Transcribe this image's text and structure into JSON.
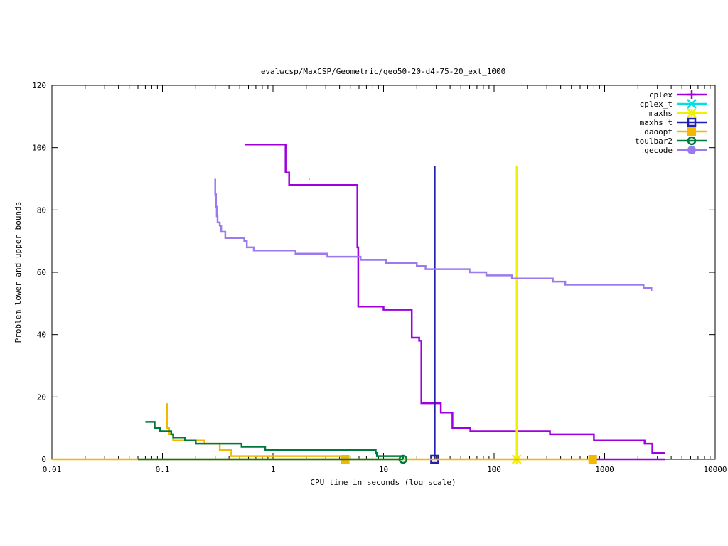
{
  "chart_data": {
    "type": "line",
    "title": "evalwcsp/MaxCSP/Geometric/geo50-20-d4-75-20_ext_1000",
    "xlabel": "CPU time in seconds (log scale)",
    "ylabel": "Problem lower and upper bounds",
    "xscale": "log",
    "xlim": [
      0.01,
      10000
    ],
    "ylim": [
      0,
      120
    ],
    "x_ticks": [
      0.01,
      0.1,
      1,
      10,
      100,
      1000,
      10000
    ],
    "x_tick_labels": [
      "0.01",
      "0.1",
      "1",
      "10",
      "100",
      "1000",
      "10000"
    ],
    "y_ticks": [
      0,
      20,
      40,
      60,
      80,
      100,
      120
    ],
    "y_tick_labels": [
      "0",
      "20",
      "40",
      "60",
      "80",
      "100",
      "120"
    ],
    "grid": false,
    "legend_position": "top-right",
    "series": [
      {
        "name": "cplex",
        "color": "#a000e0",
        "marker": "plus",
        "points": [
          [
            0.56,
            101
          ],
          [
            1.3,
            101
          ],
          [
            1.3,
            92
          ],
          [
            1.4,
            92
          ],
          [
            1.4,
            88
          ],
          [
            5.8,
            88
          ],
          [
            5.8,
            68
          ],
          [
            5.9,
            68
          ],
          [
            5.9,
            49
          ],
          [
            10,
            49
          ],
          [
            10,
            48
          ],
          [
            18,
            48
          ],
          [
            18,
            39
          ],
          [
            21,
            39
          ],
          [
            21,
            38
          ],
          [
            22,
            38
          ],
          [
            22,
            18
          ],
          [
            33,
            18
          ],
          [
            33,
            15
          ],
          [
            42,
            15
          ],
          [
            42,
            10
          ],
          [
            61,
            10
          ],
          [
            61,
            9
          ],
          [
            320,
            9
          ],
          [
            320,
            8
          ],
          [
            800,
            8
          ],
          [
            800,
            6
          ],
          [
            2300,
            6
          ],
          [
            2300,
            5
          ],
          [
            2700,
            5
          ],
          [
            2700,
            2
          ],
          [
            3500,
            2
          ]
        ],
        "extra_points": [
          [
            780,
            0
          ],
          [
            3500,
            0
          ]
        ],
        "marker_points": []
      },
      {
        "name": "cplex_t",
        "color": "#00e0e0",
        "marker": "cross",
        "points": [
          [
            2.1,
            90
          ],
          [
            2.15,
            90
          ]
        ],
        "marker_points": []
      },
      {
        "name": "maxhs",
        "color": "#f0f000",
        "marker": "star",
        "points": [
          [
            160,
            0
          ],
          [
            160,
            94
          ]
        ],
        "marker_points": [
          [
            160,
            0
          ]
        ]
      },
      {
        "name": "maxhs_t",
        "color": "#2020b0",
        "marker": "open-square",
        "points": [
          [
            29,
            0
          ],
          [
            29,
            94
          ]
        ],
        "marker_points": [
          [
            29,
            0
          ]
        ]
      },
      {
        "name": "daoopt",
        "color": "#f5b800",
        "marker": "filled-square",
        "points": [
          [
            0.11,
            18
          ],
          [
            0.11,
            10
          ],
          [
            0.115,
            10
          ],
          [
            0.115,
            8
          ],
          [
            0.125,
            8
          ],
          [
            0.125,
            6
          ],
          [
            0.24,
            6
          ],
          [
            0.24,
            5
          ],
          [
            0.33,
            5
          ],
          [
            0.33,
            3
          ],
          [
            0.42,
            3
          ],
          [
            0.42,
            1
          ],
          [
            4.5,
            1
          ],
          [
            4.5,
            0
          ]
        ],
        "extra_points": [
          [
            0.01,
            0
          ],
          [
            780,
            0
          ]
        ],
        "marker_points": [
          [
            4.5,
            0
          ],
          [
            780,
            0
          ]
        ]
      },
      {
        "name": "toulbar2",
        "color": "#007a3c",
        "marker": "open-circle",
        "points": [
          [
            0.07,
            12
          ],
          [
            0.085,
            12
          ],
          [
            0.085,
            10
          ],
          [
            0.095,
            10
          ],
          [
            0.095,
            9
          ],
          [
            0.12,
            9
          ],
          [
            0.12,
            8
          ],
          [
            0.125,
            8
          ],
          [
            0.125,
            7
          ],
          [
            0.16,
            7
          ],
          [
            0.16,
            6
          ],
          [
            0.2,
            6
          ],
          [
            0.2,
            5
          ],
          [
            0.52,
            5
          ],
          [
            0.52,
            4
          ],
          [
            0.85,
            4
          ],
          [
            0.85,
            3
          ],
          [
            8.5,
            3
          ],
          [
            8.5,
            2
          ],
          [
            8.7,
            2
          ],
          [
            8.7,
            1
          ],
          [
            15,
            1
          ],
          [
            15,
            0
          ]
        ],
        "extra_points": [
          [
            0.06,
            0
          ],
          [
            15,
            0
          ]
        ],
        "marker_points": [
          [
            15,
            0
          ]
        ]
      },
      {
        "name": "gecode",
        "color": "#9b7af0",
        "marker": "filled-circle",
        "points": [
          [
            0.3,
            90
          ],
          [
            0.3,
            85
          ],
          [
            0.305,
            85
          ],
          [
            0.305,
            81
          ],
          [
            0.31,
            81
          ],
          [
            0.31,
            78
          ],
          [
            0.315,
            78
          ],
          [
            0.315,
            76
          ],
          [
            0.33,
            76
          ],
          [
            0.33,
            75
          ],
          [
            0.34,
            75
          ],
          [
            0.34,
            73
          ],
          [
            0.37,
            73
          ],
          [
            0.37,
            71
          ],
          [
            0.55,
            71
          ],
          [
            0.55,
            70
          ],
          [
            0.58,
            70
          ],
          [
            0.58,
            68
          ],
          [
            0.67,
            68
          ],
          [
            0.67,
            67
          ],
          [
            1.6,
            67
          ],
          [
            1.6,
            66
          ],
          [
            3.1,
            66
          ],
          [
            3.1,
            65
          ],
          [
            6.2,
            65
          ],
          [
            6.2,
            64
          ],
          [
            10.5,
            64
          ],
          [
            10.5,
            63
          ],
          [
            20,
            63
          ],
          [
            20,
            62
          ],
          [
            24,
            62
          ],
          [
            24,
            61
          ],
          [
            60,
            61
          ],
          [
            60,
            60
          ],
          [
            85,
            60
          ],
          [
            85,
            59
          ],
          [
            145,
            59
          ],
          [
            145,
            58
          ],
          [
            340,
            58
          ],
          [
            340,
            57
          ],
          [
            440,
            57
          ],
          [
            440,
            56
          ],
          [
            2250,
            56
          ],
          [
            2250,
            55
          ],
          [
            2650,
            55
          ],
          [
            2650,
            54
          ]
        ],
        "marker_points": []
      }
    ]
  }
}
